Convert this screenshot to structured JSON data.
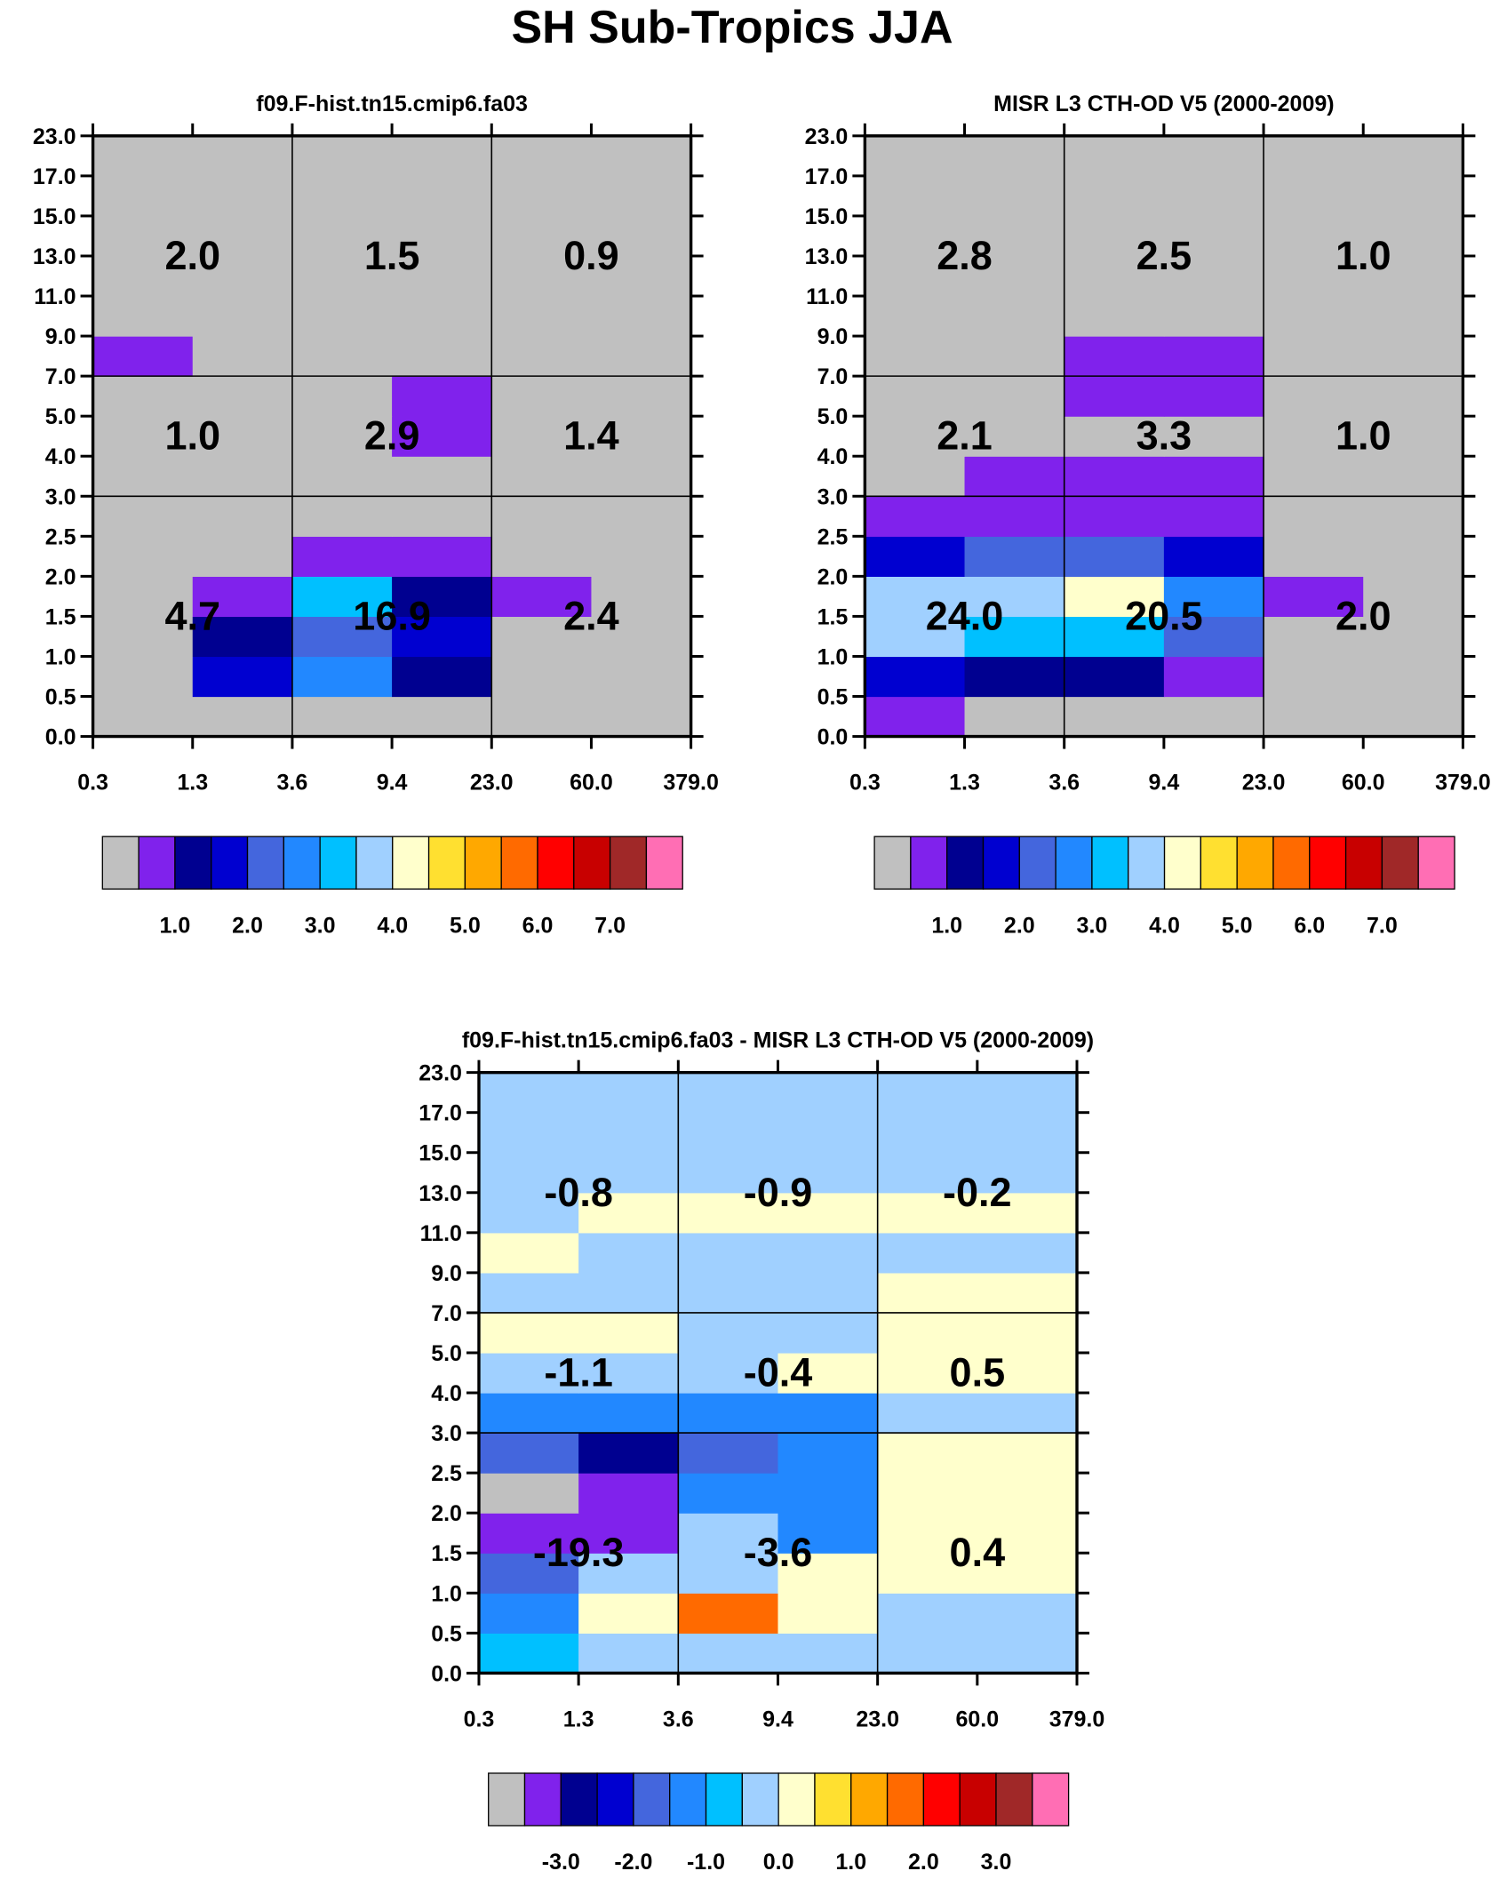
{
  "figure_title": "SH Sub-Tropics JJA",
  "chart_data": [
    {
      "type": "heatmap",
      "title": "f09.F-hist.tn15.cmip6.fa03",
      "x_ticks": [
        "0.3",
        "1.3",
        "3.6",
        "9.4",
        "23.0",
        "60.0",
        "379.0"
      ],
      "y_ticks": [
        "0.0",
        "0.5",
        "1.0",
        "1.5",
        "2.0",
        "2.5",
        "3.0",
        "4.0",
        "5.0",
        "7.0",
        "9.0",
        "11.0",
        "13.0",
        "15.0",
        "17.0",
        "23.0"
      ],
      "x_groups": [
        2,
        4
      ],
      "y_groups": [
        6,
        9
      ],
      "block_labels": [
        {
          "col": 0,
          "row": 0,
          "text": "4.7"
        },
        {
          "col": 1,
          "row": 0,
          "text": "16.9"
        },
        {
          "col": 2,
          "row": 0,
          "text": "2.4"
        },
        {
          "col": 0,
          "row": 1,
          "text": "1.0"
        },
        {
          "col": 1,
          "row": 1,
          "text": "2.9"
        },
        {
          "col": 2,
          "row": 1,
          "text": "1.4"
        },
        {
          "col": 0,
          "row": 2,
          "text": "2.0"
        },
        {
          "col": 1,
          "row": 2,
          "text": "1.5"
        },
        {
          "col": 2,
          "row": 2,
          "text": "0.9"
        }
      ],
      "grid_bins": [
        [
          0,
          0,
          0,
          0,
          0,
          0
        ],
        [
          0,
          3,
          5,
          2,
          0,
          0
        ],
        [
          0,
          2,
          4,
          3,
          0,
          0
        ],
        [
          0,
          1,
          6,
          2,
          1,
          0
        ],
        [
          0,
          0,
          1,
          1,
          0,
          0
        ],
        [
          0,
          0,
          0,
          0,
          0,
          0
        ],
        [
          0,
          0,
          0,
          0,
          0,
          0
        ],
        [
          0,
          0,
          0,
          1,
          0,
          0
        ],
        [
          0,
          0,
          0,
          1,
          0,
          0
        ],
        [
          1,
          0,
          0,
          0,
          0,
          0
        ],
        [
          0,
          0,
          0,
          0,
          0,
          0
        ],
        [
          0,
          0,
          0,
          0,
          0,
          0
        ],
        [
          0,
          0,
          0,
          0,
          0,
          0
        ],
        [
          0,
          0,
          0,
          0,
          0,
          0
        ],
        [
          0,
          0,
          0,
          0,
          0,
          0
        ]
      ]
    },
    {
      "type": "heatmap",
      "title": "MISR L3 CTH-OD V5 (2000-2009)",
      "x_ticks": [
        "0.3",
        "1.3",
        "3.6",
        "9.4",
        "23.0",
        "60.0",
        "379.0"
      ],
      "y_ticks": [
        "0.0",
        "0.5",
        "1.0",
        "1.5",
        "2.0",
        "2.5",
        "3.0",
        "4.0",
        "5.0",
        "7.0",
        "9.0",
        "11.0",
        "13.0",
        "15.0",
        "17.0",
        "23.0"
      ],
      "x_groups": [
        2,
        4
      ],
      "y_groups": [
        6,
        9
      ],
      "block_labels": [
        {
          "col": 0,
          "row": 0,
          "text": "24.0"
        },
        {
          "col": 1,
          "row": 0,
          "text": "20.5"
        },
        {
          "col": 2,
          "row": 0,
          "text": "2.0"
        },
        {
          "col": 0,
          "row": 1,
          "text": "2.1"
        },
        {
          "col": 1,
          "row": 1,
          "text": "3.3"
        },
        {
          "col": 2,
          "row": 1,
          "text": "1.0"
        },
        {
          "col": 0,
          "row": 2,
          "text": "2.8"
        },
        {
          "col": 1,
          "row": 2,
          "text": "2.5"
        },
        {
          "col": 2,
          "row": 2,
          "text": "1.0"
        }
      ],
      "grid_bins": [
        [
          1,
          0,
          0,
          0,
          0,
          0
        ],
        [
          3,
          2,
          2,
          1,
          0,
          0
        ],
        [
          7,
          6,
          6,
          4,
          0,
          0
        ],
        [
          7,
          7,
          8,
          5,
          1,
          0
        ],
        [
          3,
          4,
          4,
          3,
          0,
          0
        ],
        [
          1,
          1,
          1,
          1,
          0,
          0
        ],
        [
          0,
          1,
          1,
          1,
          0,
          0
        ],
        [
          0,
          0,
          0,
          0,
          0,
          0
        ],
        [
          0,
          0,
          1,
          1,
          0,
          0
        ],
        [
          0,
          0,
          1,
          1,
          0,
          0
        ],
        [
          0,
          0,
          0,
          0,
          0,
          0
        ],
        [
          0,
          0,
          0,
          0,
          0,
          0
        ],
        [
          0,
          0,
          0,
          0,
          0,
          0
        ],
        [
          0,
          0,
          0,
          0,
          0,
          0
        ],
        [
          0,
          0,
          0,
          0,
          0,
          0
        ]
      ]
    },
    {
      "type": "heatmap",
      "title": "f09.F-hist.tn15.cmip6.fa03 - MISR L3 CTH-OD V5 (2000-2009)",
      "x_ticks": [
        "0.3",
        "1.3",
        "3.6",
        "9.4",
        "23.0",
        "60.0",
        "379.0"
      ],
      "y_ticks": [
        "0.0",
        "0.5",
        "1.0",
        "1.5",
        "2.0",
        "2.5",
        "3.0",
        "4.0",
        "5.0",
        "7.0",
        "9.0",
        "11.0",
        "13.0",
        "15.0",
        "17.0",
        "23.0"
      ],
      "x_groups": [
        2,
        4
      ],
      "y_groups": [
        6,
        9
      ],
      "block_labels": [
        {
          "col": 0,
          "row": 0,
          "text": "-19.3"
        },
        {
          "col": 1,
          "row": 0,
          "text": "-3.6"
        },
        {
          "col": 2,
          "row": 0,
          "text": "0.4"
        },
        {
          "col": 0,
          "row": 1,
          "text": "-1.1"
        },
        {
          "col": 1,
          "row": 1,
          "text": "-0.4"
        },
        {
          "col": 2,
          "row": 1,
          "text": "0.5"
        },
        {
          "col": 0,
          "row": 2,
          "text": "-0.8"
        },
        {
          "col": 1,
          "row": 2,
          "text": "-0.9"
        },
        {
          "col": 2,
          "row": 2,
          "text": "-0.2"
        }
      ],
      "grid_bins": [
        [
          6,
          7,
          7,
          7,
          7,
          7
        ],
        [
          5,
          8,
          11,
          8,
          7,
          7
        ],
        [
          4,
          7,
          7,
          8,
          8,
          8
        ],
        [
          1,
          1,
          7,
          5,
          8,
          8
        ],
        [
          0,
          1,
          5,
          5,
          8,
          8
        ],
        [
          4,
          2,
          4,
          5,
          8,
          8
        ],
        [
          5,
          5,
          5,
          5,
          7,
          7
        ],
        [
          7,
          7,
          7,
          8,
          8,
          8
        ],
        [
          8,
          8,
          7,
          7,
          8,
          8
        ],
        [
          7,
          7,
          7,
          7,
          8,
          8
        ],
        [
          8,
          7,
          7,
          7,
          7,
          7
        ],
        [
          7,
          8,
          8,
          8,
          8,
          8
        ],
        [
          7,
          7,
          7,
          7,
          7,
          7
        ],
        [
          7,
          7,
          7,
          7,
          7,
          7
        ],
        [
          7,
          7,
          7,
          7,
          7,
          7
        ]
      ]
    }
  ],
  "colorbars": [
    {
      "colors": [
        "#c0c0c0",
        "#8022ec",
        "#000090",
        "#0000d0",
        "#4466dd",
        "#2288ff",
        "#00c0ff",
        "#a0d0ff",
        "#ffffcc",
        "#ffe030",
        "#ffa800",
        "#ff6a00",
        "#ff0000",
        "#c80000",
        "#a02828",
        "#ff6eb4"
      ],
      "labels": [
        "1.0",
        "2.0",
        "3.0",
        "4.0",
        "5.0",
        "6.0",
        "7.0"
      ]
    },
    {
      "colors": [
        "#c0c0c0",
        "#8022ec",
        "#000090",
        "#0000d0",
        "#4466dd",
        "#2288ff",
        "#00c0ff",
        "#a0d0ff",
        "#ffffcc",
        "#ffe030",
        "#ffa800",
        "#ff6a00",
        "#ff0000",
        "#c80000",
        "#a02828",
        "#ff6eb4"
      ],
      "labels": [
        "1.0",
        "2.0",
        "3.0",
        "4.0",
        "5.0",
        "6.0",
        "7.0"
      ]
    },
    {
      "colors": [
        "#c0c0c0",
        "#8022ec",
        "#000090",
        "#0000d0",
        "#4466dd",
        "#2288ff",
        "#00c0ff",
        "#a0d0ff",
        "#ffffcc",
        "#ffe030",
        "#ffa800",
        "#ff6a00",
        "#ff0000",
        "#c80000",
        "#a02828",
        "#ff6eb4"
      ],
      "labels": [
        "-3.0",
        "-2.0",
        "-1.0",
        "0.0",
        "1.0",
        "2.0",
        "3.0"
      ]
    }
  ]
}
